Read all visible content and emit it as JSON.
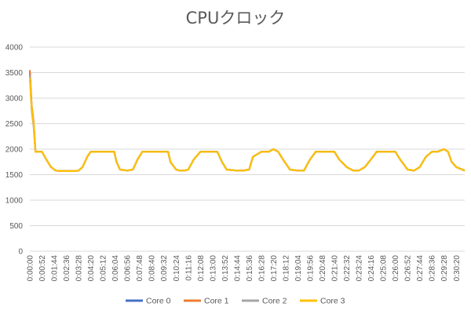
{
  "chart_data": {
    "type": "line",
    "title": "CPUクロック",
    "xlabel": "",
    "ylabel": "",
    "ylim": [
      0,
      4000
    ],
    "y_ticks": [
      0,
      500,
      1000,
      1500,
      2000,
      2500,
      3000,
      3500,
      4000
    ],
    "x_range_seconds": [
      0,
      1856
    ],
    "x_tick_labels": [
      "0:00:00",
      "0:00:52",
      "0:01:44",
      "0:02:36",
      "0:03:28",
      "0:04:20",
      "0:05:12",
      "0:06:04",
      "0:06:56",
      "0:07:48",
      "0:08:40",
      "0:09:32",
      "0:10:24",
      "0:11:16",
      "0:12:08",
      "0:13:00",
      "0:13:52",
      "0:14:44",
      "0:15:36",
      "0:16:28",
      "0:17:20",
      "0:18:12",
      "0:19:04",
      "0:19:56",
      "0:20:48",
      "0:21:40",
      "0:22:32",
      "0:23:24",
      "0:24:16",
      "0:25:08",
      "0:26:00",
      "0:26:52",
      "0:27:44",
      "0:28:36",
      "0:29:28",
      "0:30:20"
    ],
    "grid": true,
    "legend_position": "bottom",
    "x": [
      "0:00:00",
      "0:00:08",
      "0:00:16",
      "0:00:24",
      "0:00:40",
      "0:00:52",
      "0:01:10",
      "0:01:30",
      "0:01:50",
      "0:02:10",
      "0:02:36",
      "0:03:10",
      "0:03:28",
      "0:03:45",
      "0:04:05",
      "0:04:20",
      "0:04:40",
      "0:05:12",
      "0:05:40",
      "0:06:00",
      "0:06:10",
      "0:06:25",
      "0:06:56",
      "0:07:20",
      "0:07:40",
      "0:08:00",
      "0:08:40",
      "0:09:00",
      "0:09:32",
      "0:09:50",
      "0:10:00",
      "0:10:24",
      "0:10:40",
      "0:11:00",
      "0:11:16",
      "0:11:40",
      "0:12:08",
      "0:12:30",
      "0:13:00",
      "0:13:20",
      "0:13:40",
      "0:14:00",
      "0:14:44",
      "0:15:10",
      "0:15:36",
      "0:15:52",
      "0:16:28",
      "0:17:00",
      "0:17:20",
      "0:17:40",
      "0:18:00",
      "0:18:30",
      "0:19:04",
      "0:19:30",
      "0:19:56",
      "0:20:20",
      "0:20:48",
      "0:21:15",
      "0:21:40",
      "0:22:00",
      "0:22:32",
      "0:23:00",
      "0:23:24",
      "0:23:50",
      "0:24:16",
      "0:24:40",
      "0:25:08",
      "0:25:30",
      "0:26:00",
      "0:26:20",
      "0:26:52",
      "0:27:20",
      "0:27:44",
      "0:28:10",
      "0:28:36",
      "0:29:00",
      "0:29:28",
      "0:29:45",
      "0:30:00",
      "0:30:20",
      "0:30:56"
    ],
    "series": [
      {
        "name": "Core 0",
        "color": "#4472c4",
        "values": [
          3500,
          2800,
          2500,
          1950,
          1950,
          1950,
          1800,
          1650,
          1580,
          1570,
          1570,
          1570,
          1580,
          1650,
          1850,
          1950,
          1950,
          1950,
          1950,
          1950,
          1750,
          1600,
          1580,
          1600,
          1800,
          1950,
          1950,
          1950,
          1950,
          1950,
          1750,
          1600,
          1580,
          1580,
          1600,
          1800,
          1950,
          1950,
          1950,
          1950,
          1750,
          1600,
          1580,
          1580,
          1600,
          1850,
          1950,
          1950,
          2000,
          1950,
          1800,
          1600,
          1580,
          1580,
          1800,
          1950,
          1950,
          1950,
          1950,
          1800,
          1650,
          1580,
          1580,
          1650,
          1800,
          1950,
          1950,
          1950,
          1950,
          1800,
          1600,
          1580,
          1650,
          1850,
          1950,
          1950,
          2000,
          1950,
          1750,
          1650,
          1580
        ]
      },
      {
        "name": "Core 1",
        "color": "#ed7d31",
        "values": [
          3550,
          2850,
          2550,
          1950,
          1950,
          1950,
          1800,
          1650,
          1580,
          1570,
          1570,
          1570,
          1580,
          1650,
          1850,
          1950,
          1950,
          1950,
          1950,
          1950,
          1750,
          1600,
          1580,
          1600,
          1800,
          1950,
          1950,
          1950,
          1950,
          1950,
          1750,
          1600,
          1580,
          1580,
          1600,
          1800,
          1950,
          1950,
          1950,
          1950,
          1750,
          1600,
          1580,
          1580,
          1600,
          1850,
          1950,
          1950,
          2000,
          1950,
          1800,
          1600,
          1580,
          1580,
          1800,
          1950,
          1950,
          1950,
          1950,
          1800,
          1650,
          1580,
          1580,
          1650,
          1800,
          1950,
          1950,
          1950,
          1950,
          1800,
          1600,
          1580,
          1650,
          1850,
          1950,
          1950,
          2000,
          1950,
          1750,
          1650,
          1580
        ]
      },
      {
        "name": "Core 2",
        "color": "#a5a5a5",
        "values": [
          3450,
          2750,
          2450,
          1950,
          1950,
          1950,
          1800,
          1650,
          1580,
          1570,
          1570,
          1570,
          1580,
          1650,
          1850,
          1950,
          1950,
          1950,
          1950,
          1950,
          1750,
          1600,
          1580,
          1600,
          1800,
          1950,
          1950,
          1950,
          1950,
          1950,
          1750,
          1600,
          1580,
          1580,
          1600,
          1800,
          1950,
          1950,
          1950,
          1950,
          1750,
          1600,
          1580,
          1580,
          1600,
          1850,
          1950,
          1950,
          2000,
          1950,
          1800,
          1600,
          1580,
          1580,
          1800,
          1950,
          1950,
          1950,
          1950,
          1800,
          1650,
          1580,
          1580,
          1650,
          1800,
          1950,
          1950,
          1950,
          1950,
          1800,
          1600,
          1580,
          1650,
          1850,
          1950,
          1950,
          2000,
          1950,
          1750,
          1650,
          1580
        ]
      },
      {
        "name": "Core 3",
        "color": "#ffc000",
        "values": [
          3400,
          2800,
          2500,
          1950,
          1950,
          1950,
          1800,
          1650,
          1580,
          1570,
          1570,
          1570,
          1580,
          1650,
          1850,
          1950,
          1950,
          1950,
          1950,
          1950,
          1750,
          1600,
          1580,
          1600,
          1800,
          1950,
          1950,
          1950,
          1950,
          1950,
          1750,
          1600,
          1580,
          1580,
          1600,
          1800,
          1950,
          1950,
          1950,
          1950,
          1750,
          1600,
          1580,
          1580,
          1600,
          1850,
          1950,
          1950,
          2000,
          1950,
          1800,
          1600,
          1580,
          1580,
          1800,
          1950,
          1950,
          1950,
          1950,
          1800,
          1650,
          1580,
          1580,
          1650,
          1800,
          1950,
          1950,
          1950,
          1950,
          1800,
          1600,
          1580,
          1650,
          1850,
          1950,
          1950,
          2000,
          1950,
          1750,
          1650,
          1580
        ]
      }
    ]
  }
}
